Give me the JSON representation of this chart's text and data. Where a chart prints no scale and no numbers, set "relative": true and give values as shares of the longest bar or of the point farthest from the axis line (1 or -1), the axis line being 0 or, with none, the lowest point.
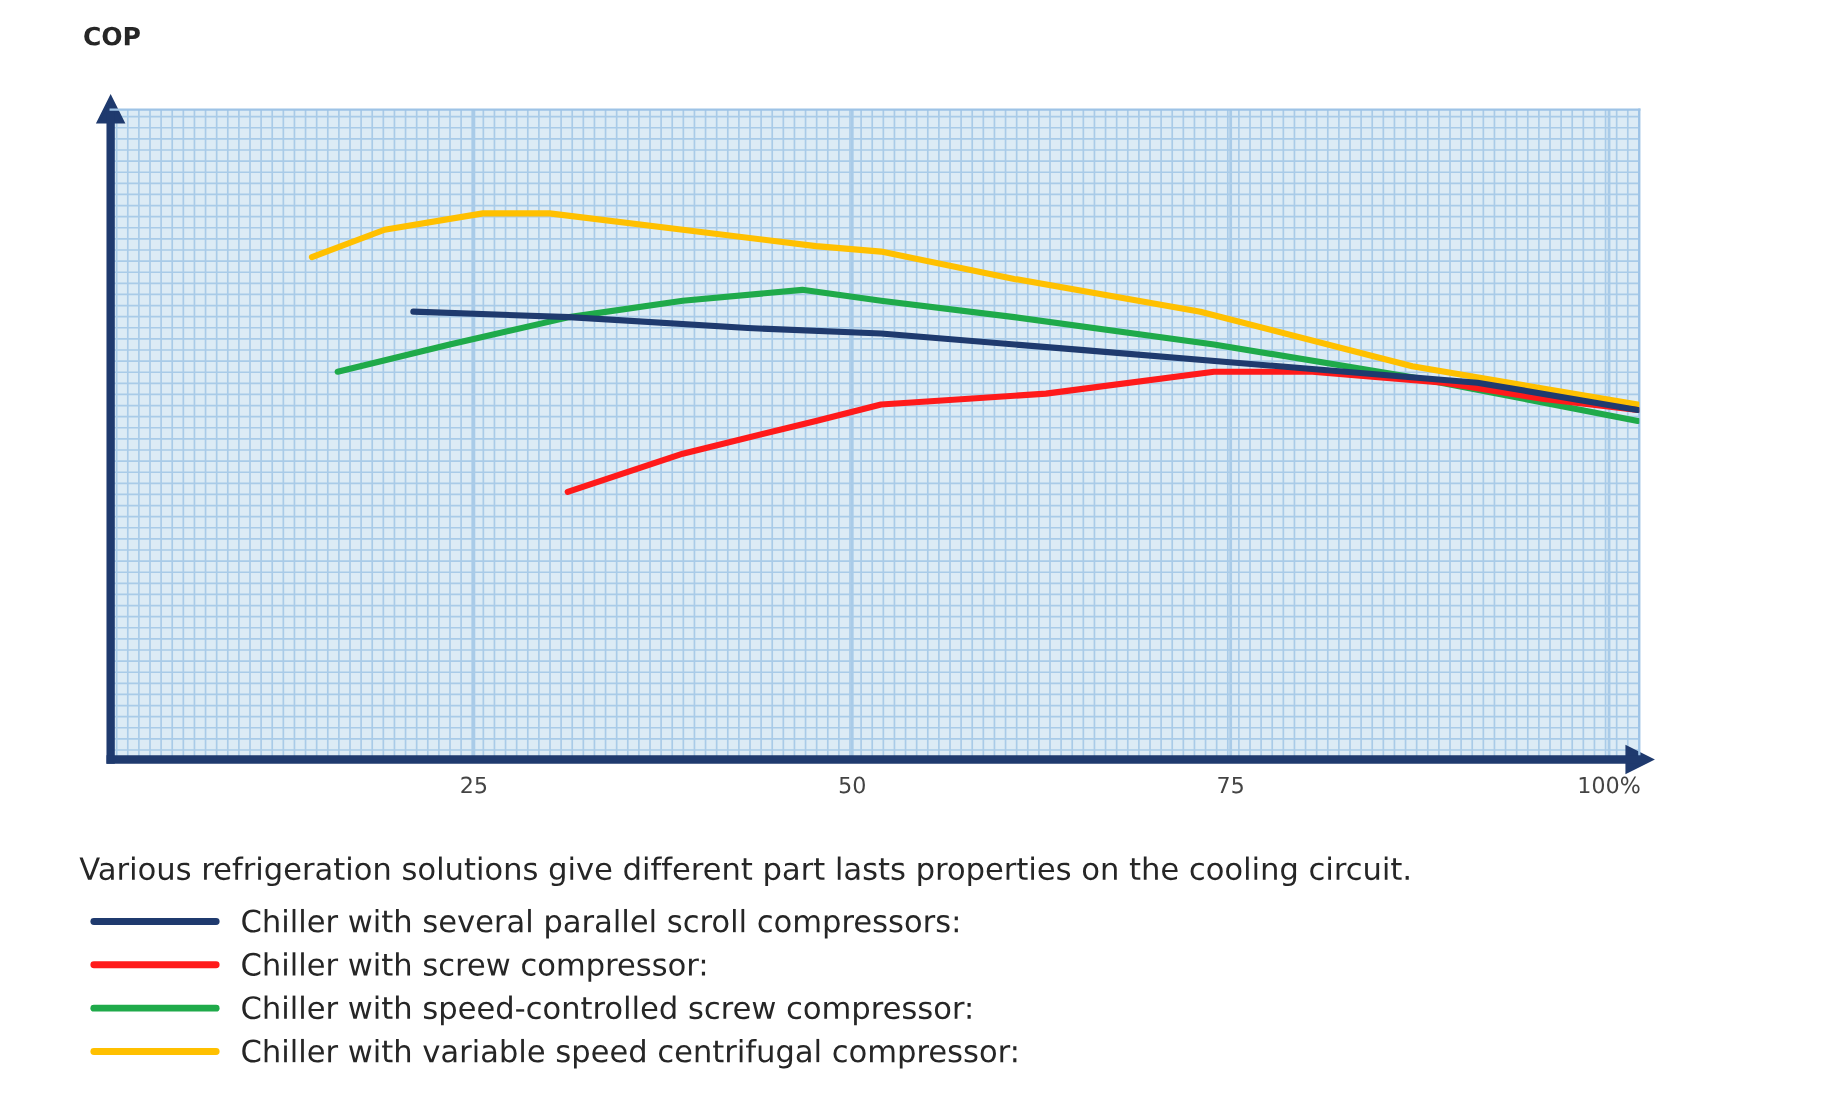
{
  "chart_data": {
    "type": "line",
    "relative": true,
    "xlim": [
      1,
      102
    ],
    "xticks": [
      25,
      50,
      75,
      {
        "value": 100,
        "label": "100%"
      }
    ],
    "grid": true,
    "legend": "bottom",
    "line_style": "solid",
    "marker": "none",
    "annotations": [
      "COP",
      "Various refrigeration solutions give different part lasts properties on the cooling circuit."
    ],
    "series": [
      {
        "name": "Chiller with several parallel scroll compressors:",
        "color": "#1f3a6e",
        "x": [
          21.0,
          31.3,
          43.1,
          51.9,
          65.1,
          78.2,
          91.3,
          101.9
        ],
        "values": [
          0.82,
          0.81,
          0.79,
          0.78,
          0.75,
          0.72,
          0.69,
          0.64
        ]
      },
      {
        "name": "Chiller with screw compressor:",
        "color": "#ff1a1a",
        "x": [
          31.2,
          38.8,
          47.6,
          51.9,
          62.8,
          73.9,
          80.4,
          89.1,
          95.7,
          101.9
        ],
        "values": [
          0.49,
          0.56,
          0.62,
          0.65,
          0.67,
          0.71,
          0.71,
          0.69,
          0.66,
          0.64
        ]
      },
      {
        "name": "Chiller with speed-controlled screw compressor:",
        "color": "#1faa4a",
        "x": [
          16.0,
          23.4,
          31.3,
          38.8,
          46.7,
          51.9,
          60.7,
          73.9,
          87.0,
          101.9
        ],
        "values": [
          0.71,
          0.76,
          0.81,
          0.84,
          0.86,
          0.84,
          0.81,
          0.76,
          0.7,
          0.62
        ]
      },
      {
        "name": "Chiller with variable speed centrifugal compressor:",
        "color": "#ffc000",
        "x": [
          14.3,
          19.1,
          25.6,
          30.0,
          38.8,
          47.6,
          51.9,
          60.7,
          73.0,
          87.0,
          101.9
        ],
        "values": [
          0.92,
          0.97,
          1.0,
          1.0,
          0.97,
          0.94,
          0.93,
          0.88,
          0.82,
          0.72,
          0.65
        ]
      }
    ]
  }
}
